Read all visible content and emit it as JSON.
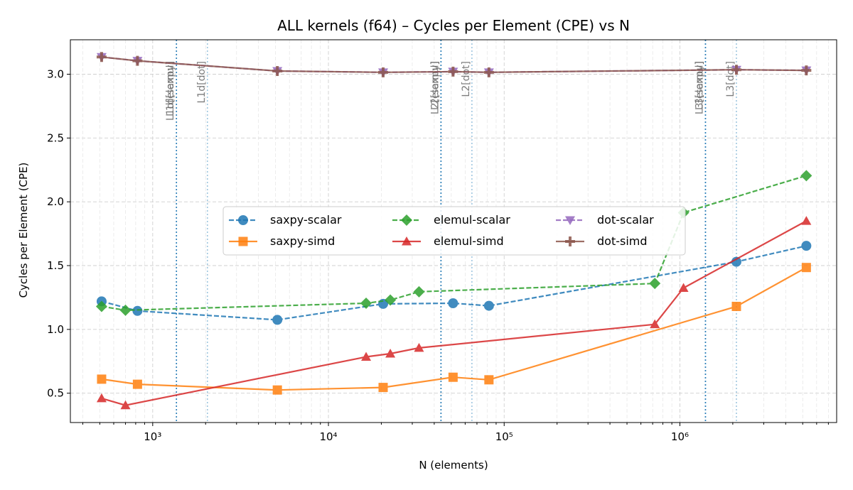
{
  "chart_data": {
    "type": "line",
    "title": "ALL kernels (f64) – Cycles per Element (CPE) vs N",
    "xlabel": "N (elements)",
    "ylabel": "Cycles per Element (CPE)",
    "xscale": "log",
    "xlim": [
      340,
      7800000
    ],
    "ylim": [
      0.27,
      3.27
    ],
    "grid": true,
    "legend_position": "center",
    "xticks": [
      {
        "value": 1000,
        "label": "10³"
      },
      {
        "value": 10000,
        "label": "10⁴"
      },
      {
        "value": 100000,
        "label": "10⁵"
      },
      {
        "value": 1000000,
        "label": "10⁶"
      }
    ],
    "yticks": [
      {
        "value": 0.5,
        "label": "0.5"
      },
      {
        "value": 1.0,
        "label": "1.0"
      },
      {
        "value": 1.5,
        "label": "1.5"
      },
      {
        "value": 2.0,
        "label": "2.0"
      },
      {
        "value": 2.5,
        "label": "2.5"
      },
      {
        "value": 3.0,
        "label": "3.0"
      }
    ],
    "cache_lines": [
      {
        "label": "L1d[elemul]",
        "x": 1365,
        "color": "#1f77b4",
        "style": "dotted"
      },
      {
        "label": "L1d[saxpy]",
        "x": 1365,
        "color": "#1f77b4",
        "style": "dotted"
      },
      {
        "label": "L1d[dot]",
        "x": 2048,
        "color": "#7fb3d5",
        "style": "dotted"
      },
      {
        "label": "L2[elemul]",
        "x": 43690,
        "color": "#1f77b4",
        "style": "dotted"
      },
      {
        "label": "L2[saxpy]",
        "x": 43690,
        "color": "#1f77b4",
        "style": "dotted"
      },
      {
        "label": "L2[dot]",
        "x": 65536,
        "color": "#7fb3d5",
        "style": "dotted"
      },
      {
        "label": "L3[elemul]",
        "x": 1398101,
        "color": "#1f77b4",
        "style": "dotted"
      },
      {
        "label": "L3[saxpy]",
        "x": 1398101,
        "color": "#1f77b4",
        "style": "dotted"
      },
      {
        "label": "L3[dot]",
        "x": 2097152,
        "color": "#7fb3d5",
        "style": "dotted"
      }
    ],
    "series": [
      {
        "name": "saxpy-scalar",
        "color": "#1f77b4",
        "dash": true,
        "marker": "circle",
        "x": [
          512,
          819,
          5120,
          20480,
          51200,
          81920,
          2097152,
          5242880
        ],
        "y": [
          1.22,
          1.145,
          1.075,
          1.2,
          1.205,
          1.185,
          1.53,
          1.655
        ]
      },
      {
        "name": "saxpy-simd",
        "color": "#ff7f0e",
        "dash": false,
        "marker": "square",
        "x": [
          512,
          819,
          5120,
          20480,
          51200,
          81920,
          2097152,
          5242880
        ],
        "y": [
          0.61,
          0.57,
          0.525,
          0.545,
          0.625,
          0.605,
          1.18,
          1.485
        ]
      },
      {
        "name": "elemul-scalar",
        "color": "#2ca02c",
        "dash": true,
        "marker": "diamond",
        "x": [
          512,
          700,
          16384,
          22500,
          32768,
          720000,
          1048576,
          5242880
        ],
        "y": [
          1.18,
          1.15,
          1.205,
          1.23,
          1.295,
          1.36,
          1.915,
          2.205
        ]
      },
      {
        "name": "elemul-simd",
        "color": "#d62728",
        "dash": false,
        "marker": "triangle-up",
        "x": [
          512,
          700,
          16384,
          22500,
          32768,
          720000,
          1048576,
          5242880
        ],
        "y": [
          0.46,
          0.405,
          0.785,
          0.81,
          0.855,
          1.04,
          1.325,
          1.85
        ]
      },
      {
        "name": "dot-scalar",
        "color": "#9467bd",
        "dash": true,
        "marker": "triangle-down",
        "x": [
          512,
          819,
          5120,
          20480,
          51200,
          81920,
          2097152,
          5242880
        ],
        "y": [
          3.135,
          3.105,
          3.025,
          3.015,
          3.02,
          3.015,
          3.035,
          3.03
        ]
      },
      {
        "name": "dot-simd",
        "color": "#8c564b",
        "dash": false,
        "marker": "plus",
        "x": [
          512,
          819,
          5120,
          20480,
          51200,
          81920,
          2097152,
          5242880
        ],
        "y": [
          3.135,
          3.105,
          3.025,
          3.015,
          3.02,
          3.015,
          3.035,
          3.03
        ]
      }
    ]
  }
}
